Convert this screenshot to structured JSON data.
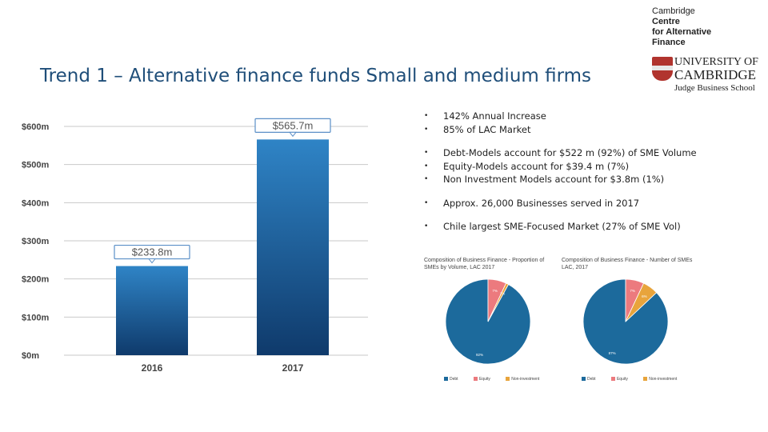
{
  "slide": {
    "title": "Trend 1 – Alternative finance funds Small and medium firms"
  },
  "logo": {
    "lines": [
      "Cambridge",
      "Centre",
      "for Alternative",
      "Finance"
    ],
    "university": "UNIVERSITY OF",
    "cambridge": "CAMBRIDGE",
    "school": "Judge Business School"
  },
  "bullets": [
    [
      "142% Annual Increase",
      "85% of LAC Market"
    ],
    [
      "Debt-Models account for $522 m (92%) of SME Volume",
      "Equity-Models account for $39.4 m (7%)",
      "Non Investment Models account for $3.8m (1%)"
    ],
    [
      "Approx. 26,000 Businesses served in 2017"
    ],
    [
      "Chile largest SME-Focused Market (27% of SME Vol)"
    ]
  ],
  "colors": {
    "title": "#1f4e79",
    "bar_top": "#2f84c6",
    "bar_bottom": "#0f3a6b",
    "debt": "#1c6a9c",
    "equity": "#ec7a7e",
    "noninvestment": "#e8a43c"
  },
  "chart_data": [
    {
      "type": "bar",
      "categories": [
        "2016",
        "2017"
      ],
      "values": [
        233.8,
        565.7
      ],
      "data_labels": [
        "$233.8m",
        "$565.7m"
      ],
      "y_ticks": [
        "$0m",
        "$100m",
        "$200m",
        "$300m",
        "$400m",
        "$500m",
        "$600m"
      ],
      "ylim": [
        0,
        600
      ],
      "grid": true
    },
    {
      "type": "pie",
      "title": "Composition of Business Finance - Proportion of SMEs by Volume, LAC 2017",
      "categories": [
        "Debt",
        "Equity",
        "Non-investment"
      ],
      "values": [
        92,
        7,
        1
      ],
      "data_labels": [
        "92%",
        "7%",
        "1%"
      ],
      "legend": "bottom"
    },
    {
      "type": "pie",
      "title": "Composition of Business Finance - Number of SMEs LAC, 2017",
      "categories": [
        "Debt",
        "Equity",
        "Non-investment"
      ],
      "values": [
        87,
        7,
        6
      ],
      "data_labels": [
        "87%",
        "7%",
        "6%"
      ],
      "legend": "bottom"
    }
  ]
}
